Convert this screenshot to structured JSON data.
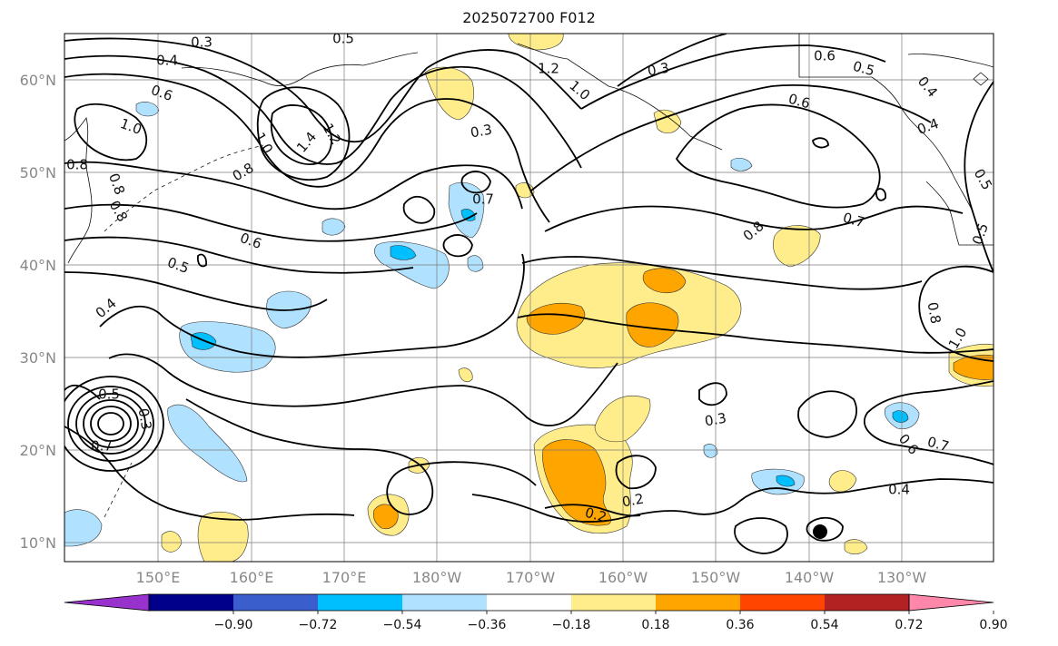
{
  "title": "2025072700 F012",
  "lat_labels": [
    "60°N",
    "50°N",
    "40°N",
    "30°N",
    "20°N",
    "10°N"
  ],
  "lon_labels": [
    "150°E",
    "160°E",
    "170°E",
    "180°W",
    "170°W",
    "160°W",
    "150°W",
    "140°W",
    "130°W"
  ],
  "colorbar": {
    "colors": [
      "#9932cc",
      "#00008b",
      "#3a5fcd",
      "#00bfff",
      "#b0e2ff",
      "#ffffff",
      "#ffec8b",
      "#ffa500",
      "#ff4500",
      "#b22222",
      "#ff88aa"
    ],
    "tick_labels": [
      "−0.90",
      "−0.72",
      "−0.54",
      "−0.36",
      "−0.18",
      "0.18",
      "0.36",
      "0.54",
      "0.72",
      "0.90"
    ]
  },
  "contour_labels": [
    {
      "text": "0.3"
    },
    {
      "text": "0.5"
    },
    {
      "text": "0.4"
    },
    {
      "text": "0.6"
    },
    {
      "text": "1.0"
    },
    {
      "text": "1.4"
    },
    {
      "text": "1.2"
    },
    {
      "text": "1.0"
    },
    {
      "text": "0.8"
    },
    {
      "text": "0.8"
    },
    {
      "text": "0.8"
    },
    {
      "text": "0.6"
    },
    {
      "text": "0.5"
    },
    {
      "text": "0.4"
    },
    {
      "text": "0.5"
    },
    {
      "text": "0.3"
    },
    {
      "text": "0.7"
    },
    {
      "text": "1.2"
    },
    {
      "text": "1.0"
    },
    {
      "text": "0.3"
    },
    {
      "text": "0.7"
    },
    {
      "text": "0.6"
    },
    {
      "text": "0.5"
    },
    {
      "text": "0.6"
    },
    {
      "text": "0.4"
    },
    {
      "text": "0.8"
    },
    {
      "text": "0.7"
    },
    {
      "text": "0.5"
    },
    {
      "text": "0.8"
    },
    {
      "text": "1.0"
    },
    {
      "text": "0.3"
    },
    {
      "text": "0.2"
    },
    {
      "text": "0.2"
    },
    {
      "text": "0.4"
    },
    {
      "text": "0.6"
    },
    {
      "text": "0.7"
    },
    {
      "text": "0.3"
    },
    {
      "text": "0.5"
    },
    {
      "text": "0.4"
    },
    {
      "text": "0.8"
    }
  ]
}
